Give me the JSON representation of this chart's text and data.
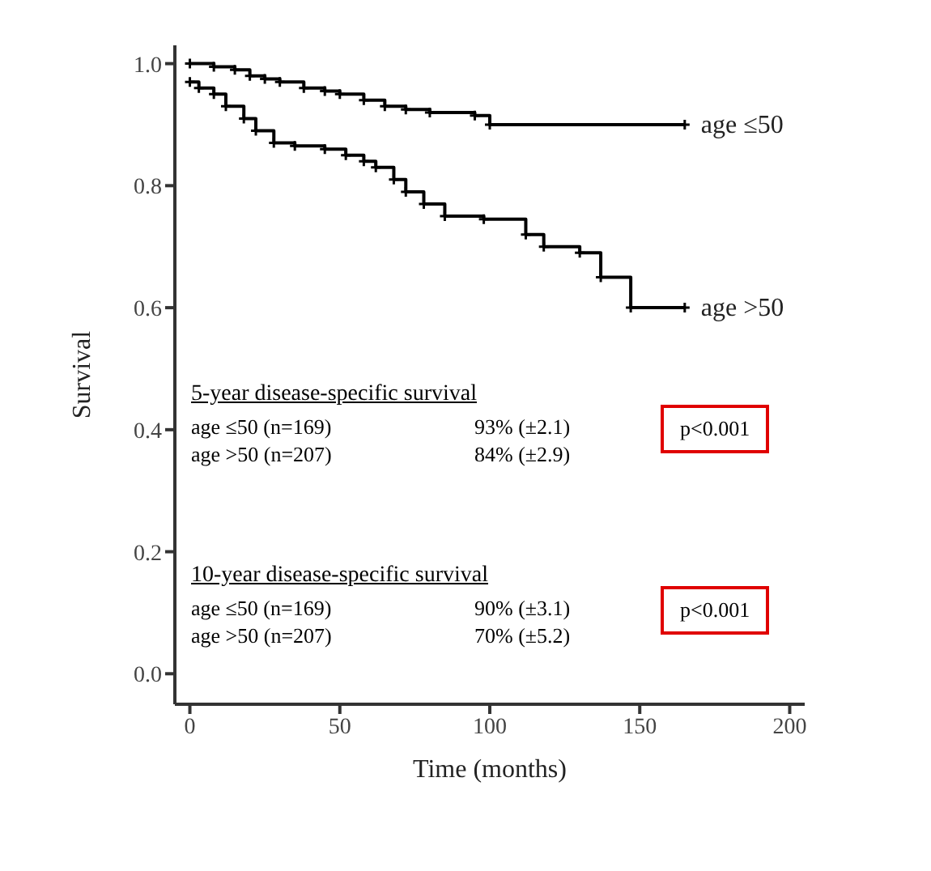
{
  "chart_data": {
    "type": "step",
    "xlabel": "Time (months)",
    "ylabel": "Survival",
    "xlim": [
      -5,
      205
    ],
    "ylim": [
      -0.05,
      1.03
    ],
    "xticks": [
      0,
      50,
      100,
      150,
      200
    ],
    "yticks": [
      {
        "value": 0,
        "label": "0.0"
      },
      0.2,
      0.4,
      0.6,
      0.8,
      {
        "value": 1,
        "label": "1.0"
      }
    ],
    "marker": "cross",
    "line_style": "solid",
    "series": [
      {
        "name": "age ≤50",
        "color": "#000000",
        "x": [
          0,
          8,
          15,
          20,
          25,
          30,
          38,
          45,
          50,
          58,
          65,
          72,
          80,
          95,
          100,
          165
        ],
        "values": [
          1.0,
          0.995,
          0.99,
          0.98,
          0.975,
          0.97,
          0.96,
          0.955,
          0.95,
          0.94,
          0.93,
          0.925,
          0.92,
          0.915,
          0.9,
          0.9
        ]
      },
      {
        "name": "age >50",
        "color": "#000000",
        "x": [
          0,
          3,
          8,
          12,
          18,
          22,
          28,
          35,
          45,
          52,
          58,
          62,
          68,
          72,
          78,
          85,
          98,
          112,
          118,
          130,
          137,
          147,
          165
        ],
        "values": [
          0.97,
          0.96,
          0.95,
          0.93,
          0.91,
          0.89,
          0.87,
          0.865,
          0.86,
          0.85,
          0.84,
          0.83,
          0.81,
          0.79,
          0.77,
          0.75,
          0.745,
          0.72,
          0.7,
          0.69,
          0.65,
          0.6,
          0.6
        ]
      }
    ],
    "annotations": [
      "5-year disease-specific survival",
      "age ≤50 (n=169)",
      "93% (±2.1)",
      "age >50 (n=207)",
      "84% (±2.9)",
      "p<0.001",
      "10-year disease-specific survival",
      "age ≤50 (n=169)",
      "90% (±3.1)",
      "age >50 (n=207)",
      "70% (±5.2)",
      "p<0.001"
    ]
  }
}
